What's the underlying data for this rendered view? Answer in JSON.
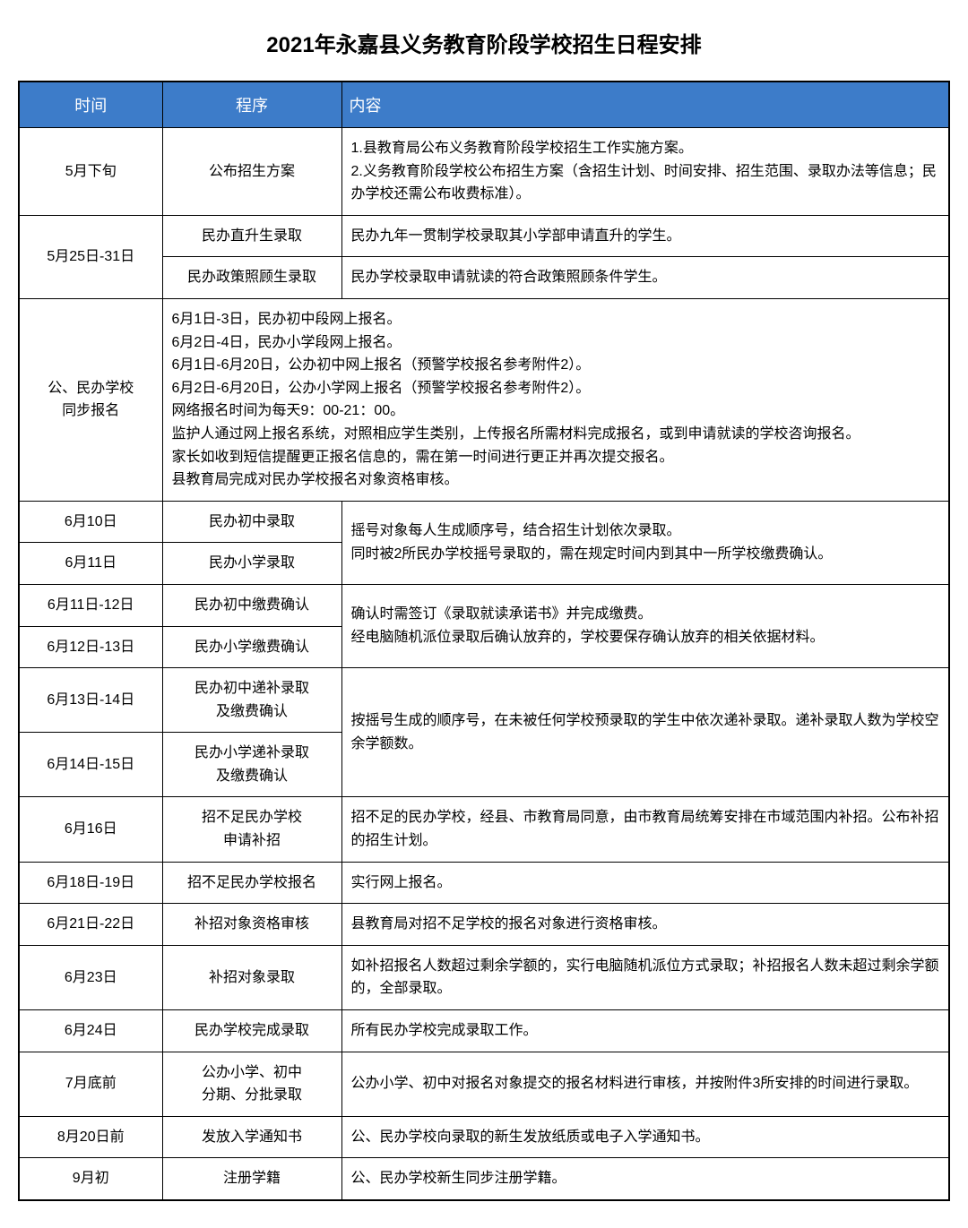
{
  "title": "2021年永嘉县义务教育阶段学校招生日程安排",
  "headers": {
    "time": "时间",
    "proc": "程序",
    "content": "内容"
  },
  "rows": {
    "r1": {
      "time": "5月下旬",
      "proc": "公布招生方案",
      "content": "1.县教育局公布义务教育阶段学校招生工作实施方案。\n2.义务教育阶段学校公布招生方案（含招生计划、时间安排、招生范围、录取办法等信息；民办学校还需公布收费标准）。"
    },
    "r2": {
      "time": "5月25日-31日",
      "proc1": "民办直升生录取",
      "content1": "民办九年一贯制学校录取其小学部申请直升的学生。",
      "proc2": "民办政策照顾生录取",
      "content2": "民办学校录取申请就读的符合政策照顾条件学生。"
    },
    "r3": {
      "time": "公、民办学校\n同步报名",
      "content": "6月1日-3日，民办初中段网上报名。\n6月2日-4日，民办小学段网上报名。\n6月1日-6月20日，公办初中网上报名（预警学校报名参考附件2）。\n6月2日-6月20日，公办小学网上报名（预警学校报名参考附件2）。\n网络报名时间为每天9：00-21：00。\n监护人通过网上报名系统，对照相应学生类别，上传报名所需材料完成报名，或到申请就读的学校咨询报名。\n家长如收到短信提醒更正报名信息的，需在第一时间进行更正并再次提交报名。\n县教育局完成对民办学校报名对象资格审核。"
    },
    "r4": {
      "time": "6月10日",
      "proc": "民办初中录取",
      "content_merged": "摇号对象每人生成顺序号，结合招生计划依次录取。\n同时被2所民办学校摇号录取的，需在规定时间内到其中一所学校缴费确认。"
    },
    "r5": {
      "time": "6月11日",
      "proc": "民办小学录取"
    },
    "r6": {
      "time": "6月11日-12日",
      "proc": "民办初中缴费确认",
      "content_merged": "确认时需签订《录取就读承诺书》并完成缴费。\n经电脑随机派位录取后确认放弃的，学校要保存确认放弃的相关依据材料。"
    },
    "r7": {
      "time": "6月12日-13日",
      "proc": "民办小学缴费确认"
    },
    "r8": {
      "time": "6月13日-14日",
      "proc": "民办初中递补录取\n及缴费确认",
      "content_merged": "按摇号生成的顺序号，在未被任何学校预录取的学生中依次递补录取。递补录取人数为学校空余学额数。"
    },
    "r9": {
      "time": "6月14日-15日",
      "proc": "民办小学递补录取\n及缴费确认"
    },
    "r10": {
      "time": "6月16日",
      "proc": "招不足民办学校\n申请补招",
      "content": "招不足的民办学校，经县、市教育局同意，由市教育局统筹安排在市域范围内补招。公布补招的招生计划。"
    },
    "r11": {
      "time": "6月18日-19日",
      "proc": "招不足民办学校报名",
      "content": "实行网上报名。"
    },
    "r12": {
      "time": "6月21日-22日",
      "proc": "补招对象资格审核",
      "content": "县教育局对招不足学校的报名对象进行资格审核。"
    },
    "r13": {
      "time": "6月23日",
      "proc": "补招对象录取",
      "content": "如补招报名人数超过剩余学额的，实行电脑随机派位方式录取；补招报名人数未超过剩余学额的，全部录取。"
    },
    "r14": {
      "time": "6月24日",
      "proc": "民办学校完成录取",
      "content": "所有民办学校完成录取工作。"
    },
    "r15": {
      "time": "7月底前",
      "proc": "公办小学、初中\n分期、分批录取",
      "content": "公办小学、初中对报名对象提交的报名材料进行审核，并按附件3所安排的时间进行录取。"
    },
    "r16": {
      "time": "8月20日前",
      "proc": "发放入学通知书",
      "content": "公、民办学校向录取的新生发放纸质或电子入学通知书。"
    },
    "r17": {
      "time": "9月初",
      "proc": "注册学籍",
      "content": "公、民办学校新生同步注册学籍。"
    }
  }
}
